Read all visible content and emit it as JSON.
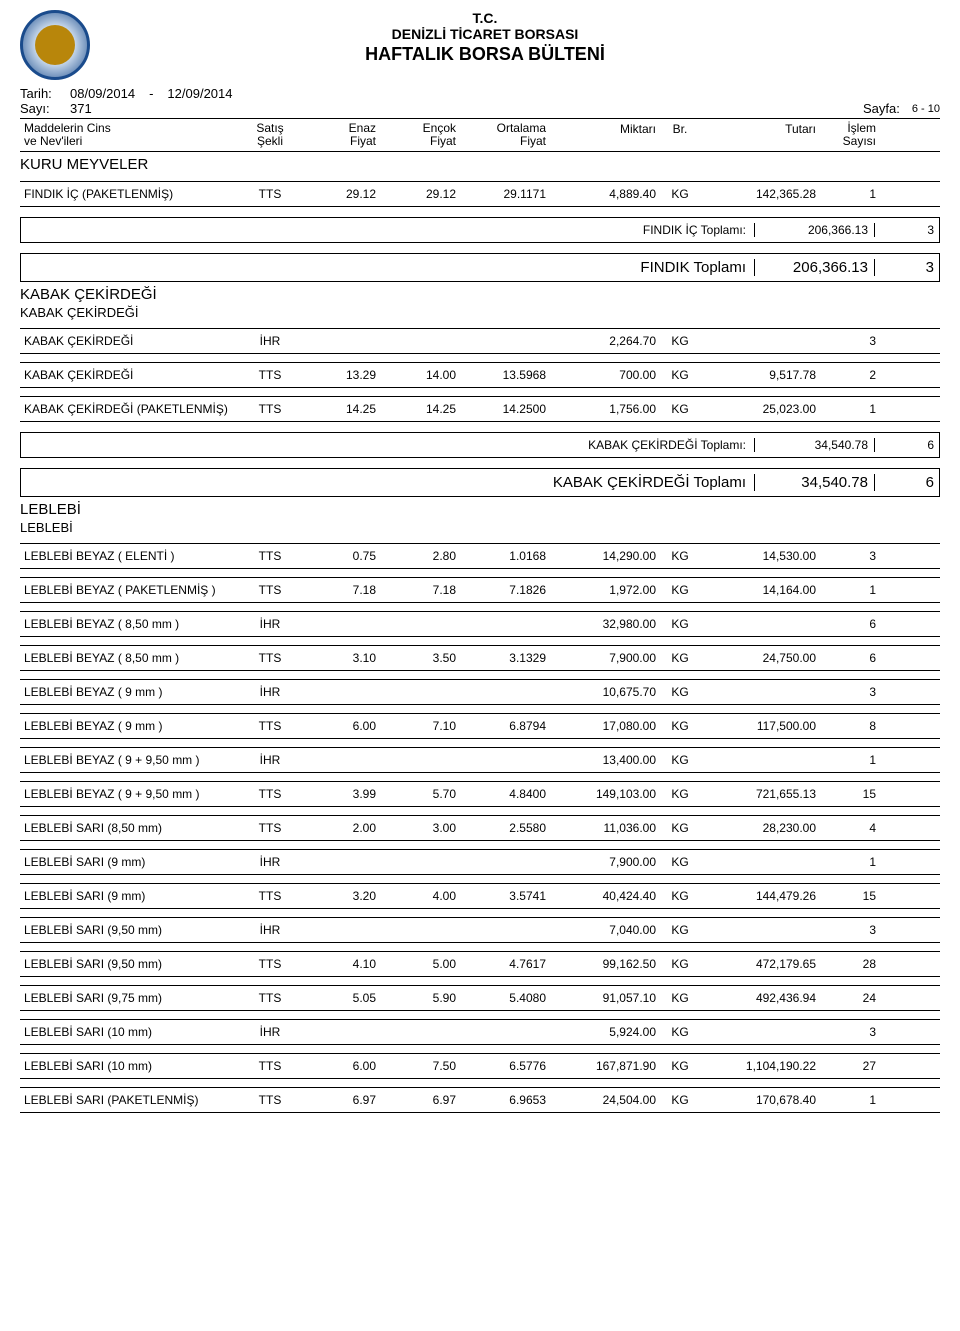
{
  "header": {
    "line1": "T.C.",
    "line2": "DENİZLİ TİCARET BORSASI",
    "line3": "HAFTALIK BORSA BÜLTENİ"
  },
  "meta": {
    "tarih_label": "Tarih:",
    "tarih": "08/09/2014",
    "tarih_sep": "-",
    "tarih2": "12/09/2014",
    "sayi_label": "Sayı:",
    "sayi": "371",
    "sayfa_label": "Sayfa:",
    "sayfa": "6 - 10"
  },
  "cols": {
    "name1": "Maddelerin Cins",
    "name2": "ve Nev'ileri",
    "sekli1": "Satış",
    "sekli2": "Şekli",
    "enaz1": "Enaz",
    "enaz2": "Fiyat",
    "encok1": "Ençok",
    "encok2": "Fiyat",
    "ort1": "Ortalama",
    "ort2": "Fiyat",
    "miktar": "Miktarı",
    "br": "Br.",
    "tutar": "Tutarı",
    "islem1": "İşlem",
    "islem2": "Sayısı"
  },
  "sections": [
    {
      "h1": "KURU MEYVELER",
      "h2": null,
      "rows": [
        {
          "name": "FINDIK İÇ (PAKETLENMİŞ)",
          "sekli": "TTS",
          "enaz": "29.12",
          "encok": "29.12",
          "ort": "29.1171",
          "miktar": "4,889.40",
          "br": "KG",
          "tutar": "142,365.28",
          "islem": "1"
        }
      ],
      "subtotals": [
        {
          "label": "FINDIK İÇ  Toplamı:",
          "val": "206,366.13",
          "count": "3",
          "big": false
        }
      ],
      "totals": [
        {
          "label": "FINDIK  Toplamı",
          "val": "206,366.13",
          "count": "3",
          "big": true
        }
      ]
    },
    {
      "h1": "KABAK ÇEKİRDEĞİ",
      "h2": "KABAK ÇEKİRDEĞİ",
      "rows": [
        {
          "name": "KABAK ÇEKİRDEĞİ",
          "sekli": "İHR",
          "enaz": "",
          "encok": "",
          "ort": "",
          "miktar": "2,264.70",
          "br": "KG",
          "tutar": "",
          "islem": "3"
        },
        {
          "name": "KABAK ÇEKİRDEĞİ",
          "sekli": "TTS",
          "enaz": "13.29",
          "encok": "14.00",
          "ort": "13.5968",
          "miktar": "700.00",
          "br": "KG",
          "tutar": "9,517.78",
          "islem": "2"
        },
        {
          "name": "KABAK ÇEKİRDEĞİ (PAKETLENMİŞ)",
          "sekli": "TTS",
          "enaz": "14.25",
          "encok": "14.25",
          "ort": "14.2500",
          "miktar": "1,756.00",
          "br": "KG",
          "tutar": "25,023.00",
          "islem": "1"
        }
      ],
      "subtotals": [
        {
          "label": "KABAK ÇEKİRDEĞİ  Toplamı:",
          "val": "34,540.78",
          "count": "6",
          "big": false
        }
      ],
      "totals": [
        {
          "label": "KABAK ÇEKİRDEĞİ  Toplamı",
          "val": "34,540.78",
          "count": "6",
          "big": true
        }
      ]
    },
    {
      "h1": "LEBLEBİ",
      "h2": "LEBLEBİ",
      "rows": [
        {
          "name": "LEBLEBİ BEYAZ ( ELENTİ )",
          "sekli": "TTS",
          "enaz": "0.75",
          "encok": "2.80",
          "ort": "1.0168",
          "miktar": "14,290.00",
          "br": "KG",
          "tutar": "14,530.00",
          "islem": "3"
        },
        {
          "name": "LEBLEBİ BEYAZ ( PAKETLENMİŞ )",
          "sekli": "TTS",
          "enaz": "7.18",
          "encok": "7.18",
          "ort": "7.1826",
          "miktar": "1,972.00",
          "br": "KG",
          "tutar": "14,164.00",
          "islem": "1"
        },
        {
          "name": "LEBLEBİ BEYAZ ( 8,50 mm )",
          "sekli": "İHR",
          "enaz": "",
          "encok": "",
          "ort": "",
          "miktar": "32,980.00",
          "br": "KG",
          "tutar": "",
          "islem": "6"
        },
        {
          "name": "LEBLEBİ BEYAZ ( 8,50 mm )",
          "sekli": "TTS",
          "enaz": "3.10",
          "encok": "3.50",
          "ort": "3.1329",
          "miktar": "7,900.00",
          "br": "KG",
          "tutar": "24,750.00",
          "islem": "6"
        },
        {
          "name": "LEBLEBİ BEYAZ ( 9 mm )",
          "sekli": "İHR",
          "enaz": "",
          "encok": "",
          "ort": "",
          "miktar": "10,675.70",
          "br": "KG",
          "tutar": "",
          "islem": "3"
        },
        {
          "name": "LEBLEBİ BEYAZ ( 9 mm )",
          "sekli": "TTS",
          "enaz": "6.00",
          "encok": "7.10",
          "ort": "6.8794",
          "miktar": "17,080.00",
          "br": "KG",
          "tutar": "117,500.00",
          "islem": "8"
        },
        {
          "name": "LEBLEBİ BEYAZ ( 9 + 9,50 mm )",
          "sekli": "İHR",
          "enaz": "",
          "encok": "",
          "ort": "",
          "miktar": "13,400.00",
          "br": "KG",
          "tutar": "",
          "islem": "1"
        },
        {
          "name": "LEBLEBİ BEYAZ ( 9 + 9,50 mm )",
          "sekli": "TTS",
          "enaz": "3.99",
          "encok": "5.70",
          "ort": "4.8400",
          "miktar": "149,103.00",
          "br": "KG",
          "tutar": "721,655.13",
          "islem": "15"
        },
        {
          "name": "LEBLEBİ SARI (8,50 mm)",
          "sekli": "TTS",
          "enaz": "2.00",
          "encok": "3.00",
          "ort": "2.5580",
          "miktar": "11,036.00",
          "br": "KG",
          "tutar": "28,230.00",
          "islem": "4"
        },
        {
          "name": "LEBLEBİ SARI (9 mm)",
          "sekli": "İHR",
          "enaz": "",
          "encok": "",
          "ort": "",
          "miktar": "7,900.00",
          "br": "KG",
          "tutar": "",
          "islem": "1"
        },
        {
          "name": "LEBLEBİ SARI (9 mm)",
          "sekli": "TTS",
          "enaz": "3.20",
          "encok": "4.00",
          "ort": "3.5741",
          "miktar": "40,424.40",
          "br": "KG",
          "tutar": "144,479.26",
          "islem": "15"
        },
        {
          "name": "LEBLEBİ SARI (9,50 mm)",
          "sekli": "İHR",
          "enaz": "",
          "encok": "",
          "ort": "",
          "miktar": "7,040.00",
          "br": "KG",
          "tutar": "",
          "islem": "3"
        },
        {
          "name": "LEBLEBİ SARI (9,50 mm)",
          "sekli": "TTS",
          "enaz": "4.10",
          "encok": "5.00",
          "ort": "4.7617",
          "miktar": "99,162.50",
          "br": "KG",
          "tutar": "472,179.65",
          "islem": "28"
        },
        {
          "name": "LEBLEBİ SARI (9,75 mm)",
          "sekli": "TTS",
          "enaz": "5.05",
          "encok": "5.90",
          "ort": "5.4080",
          "miktar": "91,057.10",
          "br": "KG",
          "tutar": "492,436.94",
          "islem": "24"
        },
        {
          "name": "LEBLEBİ SARI (10 mm)",
          "sekli": "İHR",
          "enaz": "",
          "encok": "",
          "ort": "",
          "miktar": "5,924.00",
          "br": "KG",
          "tutar": "",
          "islem": "3"
        },
        {
          "name": "LEBLEBİ SARI (10 mm)",
          "sekli": "TTS",
          "enaz": "6.00",
          "encok": "7.50",
          "ort": "6.5776",
          "miktar": "167,871.90",
          "br": "KG",
          "tutar": "1,104,190.22",
          "islem": "27"
        },
        {
          "name": "LEBLEBİ SARI (PAKETLENMİŞ)",
          "sekli": "TTS",
          "enaz": "6.97",
          "encok": "6.97",
          "ort": "6.9653",
          "miktar": "24,504.00",
          "br": "KG",
          "tutar": "170,678.40",
          "islem": "1"
        }
      ],
      "subtotals": [],
      "totals": []
    }
  ]
}
